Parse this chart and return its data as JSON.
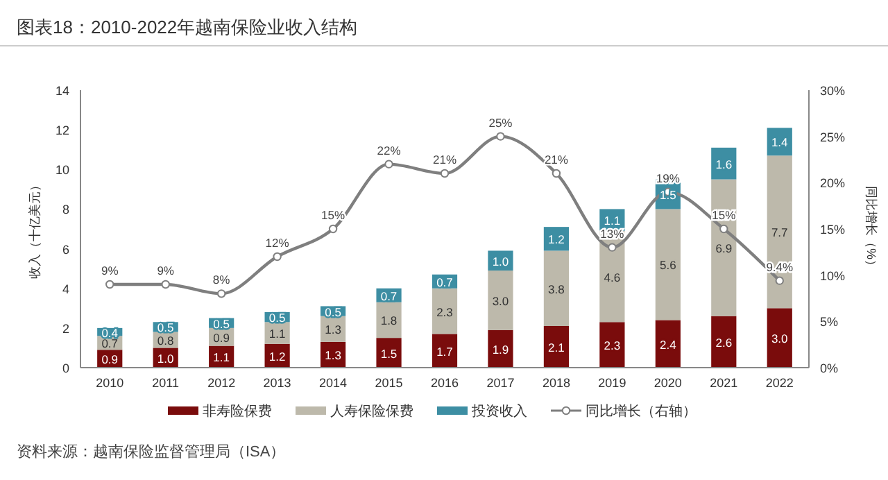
{
  "chart_data": {
    "type": "bar",
    "title": "图表18：2010-2022年越南保险业收入结构",
    "ylabel": "收入（十亿美元）",
    "y2label": "同比增长（%）",
    "stacked": true,
    "legend": "bottom",
    "categories": [
      "2010",
      "2011",
      "2012",
      "2013",
      "2014",
      "2015",
      "2016",
      "2017",
      "2018",
      "2019",
      "2020",
      "2021",
      "2022"
    ],
    "ylim": [
      0,
      14
    ],
    "yticks": [
      0,
      2,
      4,
      6,
      8,
      10,
      12,
      14
    ],
    "y2lim": [
      0,
      30
    ],
    "y2ticks": [
      {
        "value": 0,
        "label": "0%"
      },
      {
        "value": 5,
        "label": "5%"
      },
      {
        "value": 10,
        "label": "10%"
      },
      {
        "value": 15,
        "label": "15%"
      },
      {
        "value": 20,
        "label": "20%"
      },
      {
        "value": 25,
        "label": "25%"
      },
      {
        "value": 30,
        "label": "30%"
      }
    ],
    "series": [
      {
        "name": "非寿险保费",
        "color": "#7a0c0c",
        "values": [
          0.9,
          1.0,
          1.1,
          1.2,
          1.3,
          1.5,
          1.7,
          1.9,
          2.1,
          2.3,
          2.4,
          2.6,
          3.0
        ],
        "value_labels": [
          "0.9",
          "1.0",
          "1.1",
          "1.2",
          "1.3",
          "1.5",
          "1.7",
          "1.9",
          "2.1",
          "2.3",
          "2.4",
          "2.6",
          "3.0"
        ]
      },
      {
        "name": "人寿保险保费",
        "color": "#bdb9ab",
        "values": [
          0.7,
          0.8,
          0.9,
          1.1,
          1.3,
          1.8,
          2.3,
          3.0,
          3.8,
          4.6,
          5.6,
          6.9,
          7.7
        ],
        "value_labels": [
          "0.7",
          "0.8",
          "0.9",
          "1.1",
          "1.3",
          "1.8",
          "2.3",
          "3.0",
          "3.8",
          "4.6",
          "5.6",
          "6.9",
          "7.7"
        ]
      },
      {
        "name": "投资收入",
        "color": "#3d8ea3",
        "values": [
          0.4,
          0.5,
          0.5,
          0.5,
          0.5,
          0.7,
          0.7,
          1.0,
          1.2,
          1.1,
          1.5,
          1.6,
          1.4
        ],
        "value_labels": [
          "0.4",
          "0.5",
          "0.5",
          "0.5",
          "0.5",
          "0.7",
          "0.7",
          "1.0",
          "1.2",
          "1.1",
          "1.5",
          "1.6",
          "1.4"
        ]
      },
      {
        "name": "同比增长（右轴）",
        "type": "line",
        "axis": "y2",
        "color": "#7f7f7f",
        "marker": "circle",
        "values": [
          9,
          9,
          8,
          12,
          15,
          22,
          21,
          25,
          21,
          13,
          19,
          15,
          9.4
        ],
        "value_labels": [
          "9%",
          "9%",
          "8%",
          "12%",
          "15%",
          "22%",
          "21%",
          "25%",
          "21%",
          "13%",
          "19%",
          "15%",
          "9.4%"
        ]
      }
    ],
    "annotations": [
      "资料来源：越南保险监督管理局（ISA）"
    ]
  }
}
